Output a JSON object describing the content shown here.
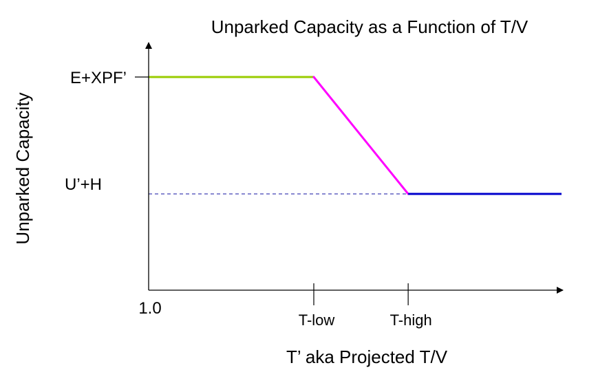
{
  "chart_data": {
    "type": "line",
    "title": "Unparked Capacity as a Function of T/V",
    "xlabel": "T’ aka Projected T/V",
    "ylabel": "Unparked Capacity",
    "x_origin_label": "1.0",
    "x_ticks": [
      {
        "key": "t_low",
        "label": "T-low",
        "value": 1.7
      },
      {
        "key": "t_high",
        "label": "T-high",
        "value": 2.1
      }
    ],
    "y_levels": [
      {
        "key": "e_xpf",
        "label": "E+XPF’",
        "value": 0.82
      },
      {
        "key": "u_h",
        "label": "U’+H",
        "value": 0.34
      }
    ],
    "xlim": [
      1.0,
      2.75
    ],
    "ylim": [
      0,
      1
    ],
    "reference_line": {
      "y": 0.34,
      "style": "dashed",
      "color": "#1010a0",
      "from_x": 1.0,
      "to_x": 2.1
    },
    "segments": [
      {
        "key": "high_plateau",
        "color": "#99cc00",
        "points": [
          [
            1.0,
            0.82
          ],
          [
            1.7,
            0.82
          ]
        ]
      },
      {
        "key": "ramp_down",
        "color": "#ff00ff",
        "points": [
          [
            1.7,
            0.82
          ],
          [
            2.1,
            0.34
          ]
        ]
      },
      {
        "key": "low_plateau",
        "color": "#0000cc",
        "points": [
          [
            2.1,
            0.34
          ],
          [
            2.75,
            0.34
          ]
        ]
      }
    ],
    "axis_color": "#000000",
    "grid": false,
    "legend": "none"
  }
}
